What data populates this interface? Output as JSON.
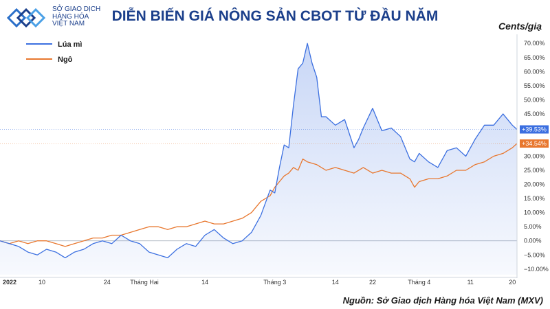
{
  "header": {
    "logo_lines": [
      "SỞ GIAO DỊCH",
      "HÀNG HÓA",
      "VIỆT NAM"
    ],
    "title": "DIỄN BIẾN GIÁ NÔNG SẢN CBOT TỪ ĐẦU NĂM",
    "unit": "Cents/giạ"
  },
  "footer": {
    "source": "Nguồn: Sở Giao dịch Hàng hóa Việt Nam (MXV)"
  },
  "colors": {
    "wheat": "#3b6fe0",
    "corn": "#e8772e",
    "title": "#1b3f8b"
  },
  "chart_data": {
    "type": "line",
    "yunit": "%",
    "ylim": [
      -12,
      72
    ],
    "yticks": [
      -10,
      -5,
      0,
      5,
      10,
      15,
      20,
      25,
      30,
      35,
      40,
      45,
      50,
      55,
      60,
      65,
      70
    ],
    "ytick_labels": [
      "−10.00%",
      "−5.00%",
      "0.00%",
      "5.00%",
      "10.00%",
      "15.00%",
      "20.00%",
      "25.00%",
      "30.00%",
      "35.00%",
      "40.00%",
      "45.00%",
      "50.00%",
      "55.00%",
      "60.00%",
      "65.00%",
      "70.00%"
    ],
    "xlim": [
      0,
      109
    ],
    "xticks": [
      {
        "x": 0,
        "label": "2022",
        "bold": true
      },
      {
        "x": 9,
        "label": "10"
      },
      {
        "x": 23,
        "label": "24"
      },
      {
        "x": 31,
        "label": "Tháng Hai"
      },
      {
        "x": 44,
        "label": "14"
      },
      {
        "x": 59,
        "label": "Tháng 3"
      },
      {
        "x": 72,
        "label": "14"
      },
      {
        "x": 80,
        "label": "22"
      },
      {
        "x": 90,
        "label": "Tháng 4"
      },
      {
        "x": 101,
        "label": "11"
      },
      {
        "x": 110,
        "label": "20"
      }
    ],
    "legend": {
      "placement": "top-left"
    },
    "series": [
      {
        "name": "Lúa mì",
        "color": "#3b6fe0",
        "last_label": "+39.53%",
        "points": [
          [
            0,
            0
          ],
          [
            2,
            -1
          ],
          [
            4,
            -2
          ],
          [
            6,
            -4
          ],
          [
            8,
            -5
          ],
          [
            10,
            -3
          ],
          [
            12,
            -4
          ],
          [
            14,
            -6
          ],
          [
            16,
            -4
          ],
          [
            18,
            -3
          ],
          [
            20,
            -1
          ],
          [
            22,
            0
          ],
          [
            24,
            -1
          ],
          [
            26,
            2
          ],
          [
            28,
            0
          ],
          [
            30,
            -1
          ],
          [
            32,
            -4
          ],
          [
            34,
            -5
          ],
          [
            36,
            -6
          ],
          [
            38,
            -3
          ],
          [
            40,
            -1
          ],
          [
            42,
            -2
          ],
          [
            44,
            2
          ],
          [
            46,
            4
          ],
          [
            48,
            1
          ],
          [
            50,
            -1
          ],
          [
            52,
            0
          ],
          [
            54,
            3
          ],
          [
            56,
            9
          ],
          [
            58,
            18
          ],
          [
            59,
            17
          ],
          [
            60,
            26
          ],
          [
            61,
            34
          ],
          [
            62,
            33
          ],
          [
            63,
            48
          ],
          [
            64,
            61
          ],
          [
            65,
            63
          ],
          [
            66,
            70
          ],
          [
            67,
            63
          ],
          [
            68,
            58
          ],
          [
            69,
            44
          ],
          [
            70,
            44
          ],
          [
            72,
            41
          ],
          [
            74,
            43
          ],
          [
            76,
            33
          ],
          [
            77,
            36
          ],
          [
            78,
            40
          ],
          [
            80,
            47
          ],
          [
            82,
            39
          ],
          [
            84,
            40
          ],
          [
            86,
            37
          ],
          [
            88,
            29
          ],
          [
            89,
            28
          ],
          [
            90,
            31
          ],
          [
            92,
            28
          ],
          [
            94,
            26
          ],
          [
            96,
            32
          ],
          [
            98,
            33
          ],
          [
            100,
            30
          ],
          [
            102,
            36
          ],
          [
            104,
            41
          ],
          [
            106,
            41
          ],
          [
            108,
            45
          ],
          [
            110,
            41
          ],
          [
            111,
            39.5
          ]
        ]
      },
      {
        "name": "Ngô",
        "color": "#e8772e",
        "last_label": "+34.54%",
        "points": [
          [
            0,
            0
          ],
          [
            2,
            -1
          ],
          [
            4,
            0
          ],
          [
            6,
            -1
          ],
          [
            8,
            0
          ],
          [
            10,
            0
          ],
          [
            12,
            -1
          ],
          [
            14,
            -2
          ],
          [
            16,
            -1
          ],
          [
            18,
            0
          ],
          [
            20,
            1
          ],
          [
            22,
            1
          ],
          [
            24,
            2
          ],
          [
            26,
            2
          ],
          [
            28,
            3
          ],
          [
            30,
            4
          ],
          [
            32,
            5
          ],
          [
            34,
            5
          ],
          [
            36,
            4
          ],
          [
            38,
            5
          ],
          [
            40,
            5
          ],
          [
            42,
            6
          ],
          [
            44,
            7
          ],
          [
            46,
            6
          ],
          [
            48,
            6
          ],
          [
            50,
            7
          ],
          [
            52,
            8
          ],
          [
            54,
            10
          ],
          [
            56,
            14
          ],
          [
            58,
            16
          ],
          [
            59,
            19
          ],
          [
            60,
            21
          ],
          [
            61,
            23
          ],
          [
            62,
            24
          ],
          [
            63,
            26
          ],
          [
            64,
            25
          ],
          [
            65,
            29
          ],
          [
            66,
            28
          ],
          [
            68,
            27
          ],
          [
            70,
            25
          ],
          [
            72,
            26
          ],
          [
            74,
            25
          ],
          [
            76,
            24
          ],
          [
            78,
            26
          ],
          [
            80,
            24
          ],
          [
            82,
            25
          ],
          [
            84,
            24
          ],
          [
            86,
            24
          ],
          [
            88,
            22
          ],
          [
            89,
            19
          ],
          [
            90,
            21
          ],
          [
            92,
            22
          ],
          [
            94,
            22
          ],
          [
            96,
            23
          ],
          [
            98,
            25
          ],
          [
            100,
            25
          ],
          [
            102,
            27
          ],
          [
            104,
            28
          ],
          [
            106,
            30
          ],
          [
            108,
            31
          ],
          [
            110,
            33
          ],
          [
            111,
            34.5
          ]
        ]
      }
    ]
  }
}
